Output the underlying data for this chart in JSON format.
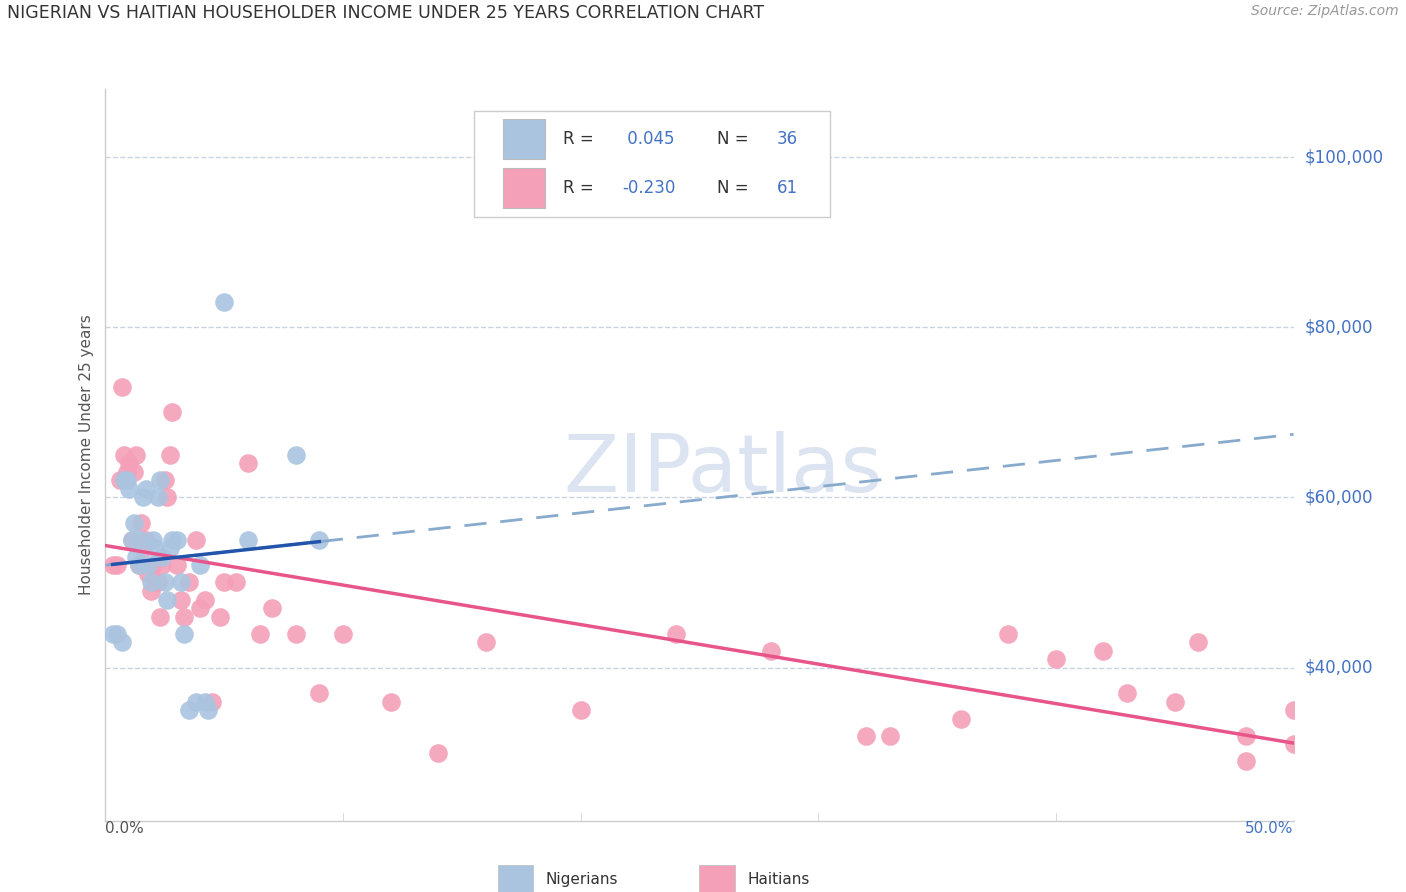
{
  "title": "NIGERIAN VS HAITIAN HOUSEHOLDER INCOME UNDER 25 YEARS CORRELATION CHART",
  "source": "Source: ZipAtlas.com",
  "ylabel": "Householder Income Under 25 years",
  "xlim": [
    0.0,
    0.5
  ],
  "ylim": [
    22000,
    108000
  ],
  "yticks": [
    40000,
    60000,
    80000,
    100000
  ],
  "ytick_labels": [
    "$40,000",
    "$60,000",
    "$80,000",
    "$100,000"
  ],
  "nigerian_R": 0.045,
  "nigerian_N": 36,
  "haitian_R": -0.23,
  "haitian_N": 61,
  "nigerian_color": "#aac4e0",
  "haitian_color": "#f4a0b8",
  "nigerian_line_color": "#2255aa",
  "haitian_line_color": "#e8558a",
  "nigerian_dashed_color": "#88aacc",
  "background_color": "#ffffff",
  "grid_color": "#c8d4e0",
  "watermark_color": "#c0cfe8",
  "nigerian_x": [
    0.003,
    0.005,
    0.007,
    0.008,
    0.009,
    0.01,
    0.011,
    0.012,
    0.013,
    0.014,
    0.015,
    0.016,
    0.017,
    0.018,
    0.019,
    0.02,
    0.021,
    0.022,
    0.023,
    0.024,
    0.025,
    0.026,
    0.027,
    0.028,
    0.03,
    0.032,
    0.033,
    0.035,
    0.038,
    0.04,
    0.042,
    0.043,
    0.05,
    0.06,
    0.08,
    0.09
  ],
  "nigerian_y": [
    44000,
    44000,
    43000,
    62000,
    62000,
    61000,
    55000,
    57000,
    53000,
    52000,
    55000,
    60000,
    61000,
    52000,
    50000,
    55000,
    54000,
    60000,
    62000,
    53000,
    50000,
    48000,
    54000,
    55000,
    55000,
    50000,
    44000,
    35000,
    36000,
    52000,
    36000,
    35000,
    83000,
    55000,
    65000,
    55000
  ],
  "haitian_x": [
    0.003,
    0.005,
    0.006,
    0.007,
    0.008,
    0.009,
    0.01,
    0.011,
    0.012,
    0.013,
    0.014,
    0.015,
    0.016,
    0.017,
    0.018,
    0.019,
    0.02,
    0.021,
    0.022,
    0.023,
    0.024,
    0.025,
    0.026,
    0.027,
    0.028,
    0.03,
    0.032,
    0.033,
    0.035,
    0.038,
    0.04,
    0.042,
    0.045,
    0.048,
    0.05,
    0.055,
    0.06,
    0.065,
    0.07,
    0.08,
    0.09,
    0.1,
    0.12,
    0.14,
    0.16,
    0.2,
    0.24,
    0.28,
    0.32,
    0.38,
    0.42,
    0.46,
    0.48,
    0.5,
    0.5,
    0.48,
    0.45,
    0.43,
    0.4,
    0.36,
    0.33
  ],
  "haitian_y": [
    52000,
    52000,
    62000,
    73000,
    65000,
    63000,
    64000,
    55000,
    63000,
    65000,
    52000,
    57000,
    54000,
    55000,
    51000,
    49000,
    52000,
    50000,
    50000,
    46000,
    52000,
    62000,
    60000,
    65000,
    70000,
    52000,
    48000,
    46000,
    50000,
    55000,
    47000,
    48000,
    36000,
    46000,
    50000,
    50000,
    64000,
    44000,
    47000,
    44000,
    37000,
    44000,
    36000,
    30000,
    43000,
    35000,
    44000,
    42000,
    32000,
    44000,
    42000,
    43000,
    32000,
    31000,
    35000,
    29000,
    36000,
    37000,
    41000,
    34000,
    32000
  ]
}
